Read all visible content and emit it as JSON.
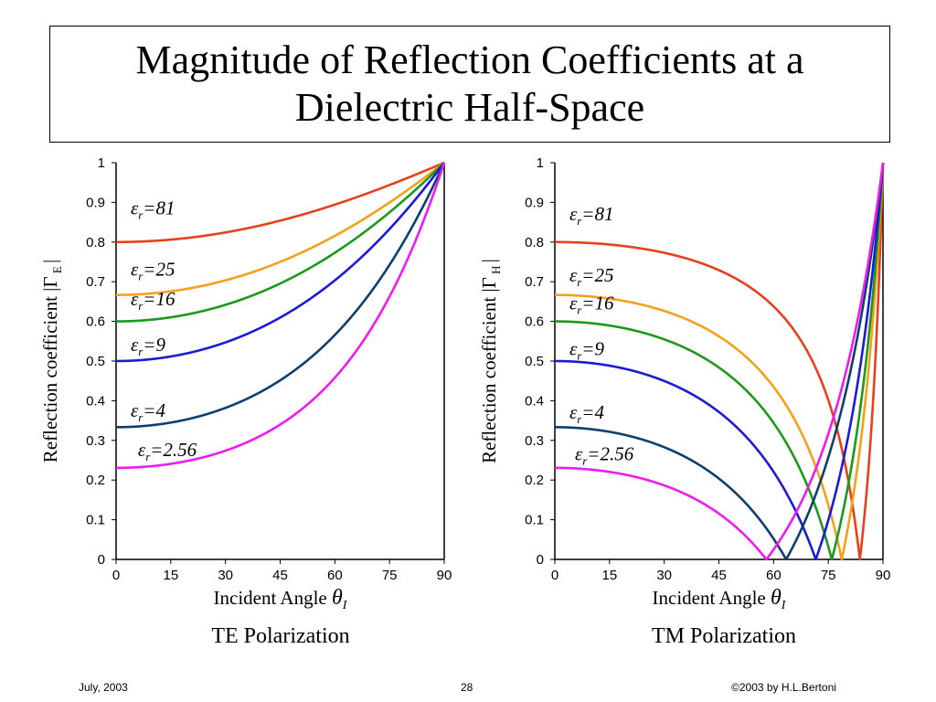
{
  "title": {
    "line1": "Magnitude of Reflection Coefficients at a",
    "line2": "Dielectric Half-Space"
  },
  "chart_data": [
    {
      "type": "line",
      "caption": "TE Polarization",
      "xlabel": "Incident Angle",
      "xlabel_symbol": "θ",
      "xlabel_sub": "I",
      "ylabel": "Reflection coefficient |Γ",
      "ylabel_sub": "E",
      "ylabel_end": "|",
      "xlim": [
        0,
        90
      ],
      "ylim": [
        0,
        1
      ],
      "xticks": [
        "0",
        "15",
        "30",
        "45",
        "60",
        "75",
        "90"
      ],
      "yticks": [
        "0",
        "0.1",
        "0.2",
        "0.3",
        "0.4",
        "0.5",
        "0.6",
        "0.7",
        "0.8",
        "0.9",
        "1"
      ],
      "grid": false,
      "series": [
        {
          "name": "εr=81",
          "epsilon": 81,
          "color": "#e8401c",
          "label_at": [
            4,
            0.87
          ]
        },
        {
          "name": "εr=25",
          "epsilon": 25,
          "color": "#f5a01a",
          "label_at": [
            4,
            0.715
          ]
        },
        {
          "name": "εr=16",
          "epsilon": 16,
          "color": "#1a9a1a",
          "label_at": [
            4,
            0.64
          ]
        },
        {
          "name": "εr=9",
          "epsilon": 9,
          "color": "#1a1ad8",
          "label_at": [
            4,
            0.525
          ]
        },
        {
          "name": "εr=4",
          "epsilon": 4,
          "color": "#0d3f6e",
          "label_at": [
            4,
            0.36
          ]
        },
        {
          "name": "εr=2.56",
          "epsilon": 2.56,
          "color": "#f01af0",
          "label_at": [
            6,
            0.26
          ]
        }
      ]
    },
    {
      "type": "line",
      "caption": "TM Polarization",
      "xlabel": "Incident Angle",
      "xlabel_symbol": "θ",
      "xlabel_sub": "I",
      "ylabel": "Reflection coefficient |Γ",
      "ylabel_sub": "H",
      "ylabel_end": "|",
      "xlim": [
        0,
        90
      ],
      "ylim": [
        0,
        1
      ],
      "xticks": [
        "0",
        "15",
        "30",
        "45",
        "60",
        "75",
        "90"
      ],
      "yticks": [
        "0",
        "0.1",
        "0.2",
        "0.3",
        "0.4",
        "0.5",
        "0.6",
        "0.7",
        "0.8",
        "0.9",
        "1"
      ],
      "grid": false,
      "series": [
        {
          "name": "εr=81",
          "epsilon": 81,
          "color": "#e8401c",
          "label_at": [
            4,
            0.855
          ]
        },
        {
          "name": "εr=25",
          "epsilon": 25,
          "color": "#f5a01a",
          "label_at": [
            4,
            0.7
          ]
        },
        {
          "name": "εr=16",
          "epsilon": 16,
          "color": "#1a9a1a",
          "label_at": [
            4,
            0.63
          ]
        },
        {
          "name": "εr=9",
          "epsilon": 9,
          "color": "#1a1ad8",
          "label_at": [
            4,
            0.515
          ]
        },
        {
          "name": "εr=4",
          "epsilon": 4,
          "color": "#0d3f6e",
          "label_at": [
            4,
            0.355
          ]
        },
        {
          "name": "εr=2.56",
          "epsilon": 2.56,
          "color": "#f01af0",
          "label_at": [
            5.5,
            0.25
          ]
        }
      ]
    }
  ],
  "footer": {
    "date": "July, 2003",
    "page": "28",
    "copyright": "©2003 by H.L.Bertoni"
  }
}
